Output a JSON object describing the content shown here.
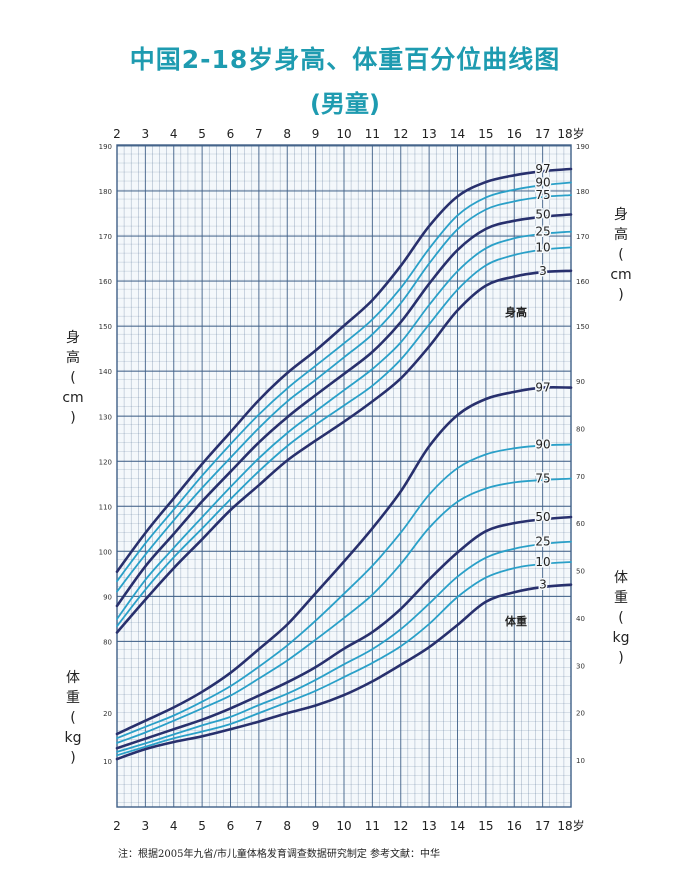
{
  "title": "中国2-18岁身高、体重百分位曲线图",
  "subtitle": "(男童)",
  "footer_note": "注：根据2005年九省/市儿童体格发育调查数据研究制定    参考文献：中华",
  "left_labels": {
    "height": [
      "身",
      "高",
      "(",
      "cm",
      ")"
    ],
    "weight": [
      "体",
      "重",
      "(",
      "kg",
      ")"
    ]
  },
  "right_labels": {
    "height": [
      "身",
      "高",
      "(",
      "cm",
      ")"
    ],
    "weight": [
      "体",
      "重",
      "(",
      "kg",
      ")"
    ]
  },
  "colors": {
    "grid": "#3f5f87",
    "dark_curve": "#28306d",
    "light_curve": "#2aa0c8",
    "title": "#1e9bb0"
  },
  "chart_data": {
    "type": "line",
    "x_unit": "岁",
    "x_ticks": [
      2,
      3,
      4,
      5,
      6,
      7,
      8,
      9,
      10,
      11,
      12,
      13,
      14,
      15,
      16,
      17,
      18
    ],
    "x_tick_labels": [
      "2",
      "3",
      "4",
      "5",
      "6",
      "7",
      "8",
      "9",
      "10",
      "11",
      "12",
      "13",
      "14",
      "15",
      "16",
      "17",
      "18岁"
    ],
    "grid": true,
    "x": [
      2,
      3,
      4,
      5,
      6,
      7,
      8,
      9,
      10,
      11,
      12,
      13,
      14,
      15,
      16,
      17,
      18
    ],
    "height_axis": {
      "label": "身高（cm）",
      "left_ticks": [
        80,
        90,
        100,
        110,
        120,
        130,
        140,
        150,
        160,
        170,
        180,
        190
      ],
      "right_ticks": [
        150,
        160,
        170,
        180,
        190
      ],
      "range": [
        75,
        190
      ]
    },
    "weight_axis": {
      "label": "体重（kg）",
      "left_ticks": [
        10,
        20
      ],
      "right_ticks": [
        10,
        20,
        30,
        40,
        50,
        60,
        70,
        80,
        90
      ],
      "range": [
        5,
        90
      ]
    },
    "height_series": [
      {
        "name": "97",
        "emphasis": true,
        "values": [
          95.5,
          104.1,
          111.8,
          119.4,
          126.5,
          133.6,
          139.6,
          144.6,
          150.1,
          155.8,
          163.4,
          172.2,
          178.8,
          182.0,
          183.5,
          184.4,
          184.9
        ]
      },
      {
        "name": "90",
        "emphasis": false,
        "values": [
          93.4,
          101.8,
          109.3,
          116.8,
          123.8,
          130.4,
          136.2,
          141.2,
          146.2,
          151.5,
          158.5,
          167.2,
          174.6,
          178.6,
          180.3,
          181.3,
          181.9
        ]
      },
      {
        "name": "75",
        "emphasis": false,
        "values": [
          91.1,
          99.3,
          106.9,
          114.1,
          120.8,
          127.4,
          133.3,
          138.1,
          143.1,
          148.2,
          155.1,
          163.9,
          171.5,
          175.9,
          177.7,
          178.7,
          179.1
        ]
      },
      {
        "name": "50",
        "emphasis": true,
        "values": [
          87.9,
          96.7,
          103.9,
          111.1,
          117.7,
          124.2,
          129.8,
          134.7,
          139.4,
          144.3,
          150.9,
          159.4,
          166.9,
          171.6,
          173.4,
          174.3,
          174.8
        ]
      },
      {
        "name": "25",
        "emphasis": false,
        "values": [
          85.0,
          93.7,
          100.8,
          107.6,
          114.3,
          120.7,
          126.3,
          131.1,
          135.8,
          140.5,
          146.4,
          154.7,
          162.2,
          167.3,
          169.5,
          170.5,
          171.0
        ]
      },
      {
        "name": "10",
        "emphasis": false,
        "values": [
          83.4,
          91.5,
          98.7,
          105.1,
          111.6,
          117.8,
          123.4,
          128.1,
          132.4,
          136.8,
          142.6,
          150.4,
          158.1,
          163.5,
          165.8,
          167.0,
          167.5
        ]
      },
      {
        "name": "3",
        "emphasis": true,
        "values": [
          82.0,
          89.3,
          96.3,
          102.7,
          109.2,
          114.7,
          120.2,
          124.6,
          128.8,
          133.3,
          138.4,
          145.5,
          153.5,
          159.0,
          161.0,
          162.0,
          162.3
        ]
      }
    ],
    "height_curve_label": "身高",
    "weight_series": [
      {
        "name": "97",
        "emphasis": true,
        "values": [
          15.5,
          18.3,
          21.1,
          24.4,
          28.4,
          33.4,
          38.6,
          45.2,
          51.9,
          58.9,
          66.7,
          76.2,
          82.8,
          86.2,
          87.7,
          88.6,
          88.6
        ]
      },
      {
        "name": "90",
        "emphasis": false,
        "values": [
          14.6,
          17.0,
          19.4,
          22.3,
          25.6,
          29.7,
          34.2,
          39.4,
          45.1,
          51.0,
          58.0,
          66.0,
          71.6,
          74.5,
          75.8,
          76.4,
          76.6
        ]
      },
      {
        "name": "75",
        "emphasis": false,
        "values": [
          13.6,
          15.8,
          18.3,
          20.9,
          23.6,
          27.2,
          31.0,
          35.4,
          40.0,
          44.9,
          51.4,
          59.0,
          64.5,
          67.3,
          68.6,
          69.1,
          69.4
        ]
      },
      {
        "name": "50",
        "emphasis": true,
        "values": [
          12.5,
          14.5,
          16.5,
          18.5,
          20.9,
          23.6,
          26.4,
          29.6,
          33.5,
          37.0,
          41.9,
          48.1,
          53.8,
          58.3,
          60.0,
          60.8,
          61.3
        ]
      },
      {
        "name": "25",
        "emphasis": false,
        "values": [
          11.7,
          13.5,
          15.4,
          17.3,
          19.1,
          21.6,
          24.0,
          26.9,
          30.2,
          33.4,
          37.6,
          43.0,
          48.7,
          52.7,
          54.6,
          55.6,
          56.1
        ]
      },
      {
        "name": "10",
        "emphasis": false,
        "values": [
          11.0,
          12.8,
          14.6,
          16.0,
          17.6,
          19.9,
          22.2,
          24.6,
          27.5,
          30.5,
          34.0,
          38.7,
          44.4,
          48.5,
          50.5,
          51.4,
          51.8
        ]
      },
      {
        "name": "3",
        "emphasis": true,
        "values": [
          10.2,
          12.3,
          13.8,
          15.0,
          16.5,
          18.1,
          19.9,
          21.5,
          23.7,
          26.6,
          30.1,
          33.8,
          38.5,
          43.4,
          45.4,
          46.5,
          47.0
        ]
      }
    ],
    "weight_curve_label": "体重"
  }
}
